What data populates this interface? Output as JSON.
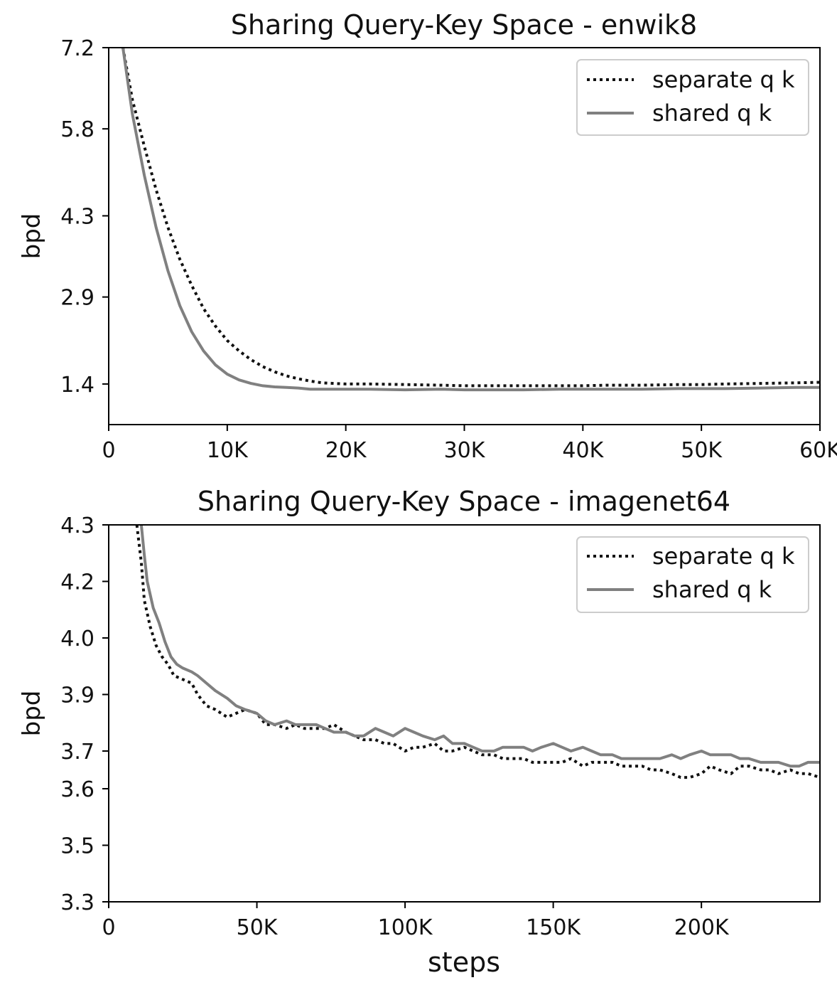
{
  "chart_data": [
    {
      "type": "line",
      "title": "Sharing Query-Key Space - enwik8",
      "xlabel": "",
      "ylabel": "bpd",
      "xlim": [
        0,
        60000
      ],
      "ylim": [
        0.7,
        7.2
      ],
      "x_ticks": [
        0,
        10000,
        20000,
        30000,
        40000,
        50000,
        60000
      ],
      "x_tick_labels": [
        "0",
        "10K",
        "20K",
        "30K",
        "40K",
        "50K",
        "60K"
      ],
      "y_ticks": [
        1.4,
        2.9,
        4.3,
        5.8,
        7.2
      ],
      "y_tick_labels": [
        "1.4",
        "2.9",
        "4.3",
        "5.8",
        "7.2"
      ],
      "grid": false,
      "legend_position": "top-right",
      "series": [
        {
          "name": "separate q k",
          "style": "dotted",
          "color": "#111111",
          "x": [
            1200,
            2000,
            3000,
            4000,
            5000,
            6000,
            7000,
            8000,
            9000,
            10000,
            11000,
            12000,
            13000,
            14000,
            15000,
            16000,
            17000,
            18000,
            19000,
            20000,
            22000,
            25000,
            28000,
            30000,
            32000,
            35000,
            38000,
            40000,
            42000,
            45000,
            48000,
            50000,
            52000,
            55000,
            58000,
            60000
          ],
          "values": [
            7.2,
            6.3,
            5.5,
            4.75,
            4.1,
            3.55,
            3.1,
            2.7,
            2.4,
            2.15,
            1.97,
            1.82,
            1.7,
            1.61,
            1.54,
            1.49,
            1.45,
            1.42,
            1.41,
            1.4,
            1.4,
            1.39,
            1.38,
            1.37,
            1.37,
            1.37,
            1.37,
            1.37,
            1.38,
            1.38,
            1.39,
            1.39,
            1.4,
            1.41,
            1.42,
            1.43
          ]
        },
        {
          "name": "shared q k",
          "style": "solid",
          "color": "#808080",
          "x": [
            1200,
            2000,
            3000,
            4000,
            5000,
            6000,
            7000,
            8000,
            9000,
            10000,
            11000,
            12000,
            13000,
            14000,
            15000,
            16000,
            17000,
            18000,
            19000,
            20000,
            22000,
            25000,
            28000,
            30000,
            32000,
            35000,
            38000,
            40000,
            42000,
            45000,
            48000,
            50000,
            52000,
            55000,
            58000,
            60000
          ],
          "values": [
            7.2,
            6.05,
            5.0,
            4.1,
            3.35,
            2.75,
            2.3,
            1.97,
            1.73,
            1.57,
            1.47,
            1.41,
            1.37,
            1.35,
            1.34,
            1.33,
            1.31,
            1.31,
            1.31,
            1.31,
            1.31,
            1.3,
            1.31,
            1.3,
            1.3,
            1.3,
            1.31,
            1.31,
            1.31,
            1.31,
            1.32,
            1.32,
            1.32,
            1.33,
            1.34,
            1.34
          ]
        }
      ]
    },
    {
      "type": "line",
      "title": "Sharing Query-Key Space - imagenet64",
      "xlabel": "steps",
      "ylabel": "bpd",
      "xlim": [
        0,
        240000
      ],
      "ylim": [
        3.3,
        4.3
      ],
      "x_ticks": [
        0,
        50000,
        100000,
        150000,
        200000
      ],
      "x_tick_labels": [
        "0",
        "50K",
        "100K",
        "150K",
        "200K"
      ],
      "y_ticks": [
        3.3,
        3.45,
        3.6,
        3.7,
        3.85,
        4.0,
        4.15,
        4.3
      ],
      "y_tick_labels": [
        "3.3",
        "3.5",
        "3.6",
        "3.7",
        "3.9",
        "4.0",
        "4.2",
        "4.3"
      ],
      "grid": false,
      "legend_position": "top-right",
      "series": [
        {
          "name": "separate q k",
          "style": "dotted",
          "color": "#111111",
          "x": [
            9500,
            11000,
            12000,
            14000,
            16000,
            18000,
            20000,
            22000,
            25000,
            28000,
            30000,
            33000,
            36000,
            40000,
            43000,
            46000,
            50000,
            53000,
            56000,
            60000,
            63000,
            66000,
            70000,
            73000,
            76000,
            80000,
            83000,
            86000,
            90000,
            93000,
            96000,
            100000,
            103000,
            106000,
            110000,
            113000,
            116000,
            120000,
            123000,
            126000,
            130000,
            133000,
            136000,
            140000,
            143000,
            146000,
            150000,
            153000,
            156000,
            160000,
            163000,
            166000,
            170000,
            173000,
            176000,
            180000,
            183000,
            186000,
            190000,
            193000,
            196000,
            200000,
            203000,
            206000,
            210000,
            213000,
            216000,
            220000,
            223000,
            226000,
            230000,
            233000,
            236000,
            240000
          ],
          "values": [
            4.3,
            4.2,
            4.1,
            4.03,
            3.98,
            3.95,
            3.93,
            3.9,
            3.89,
            3.88,
            3.85,
            3.82,
            3.81,
            3.79,
            3.8,
            3.81,
            3.8,
            3.77,
            3.77,
            3.76,
            3.77,
            3.76,
            3.76,
            3.76,
            3.77,
            3.75,
            3.74,
            3.73,
            3.73,
            3.72,
            3.72,
            3.7,
            3.71,
            3.71,
            3.72,
            3.7,
            3.7,
            3.71,
            3.7,
            3.69,
            3.69,
            3.68,
            3.68,
            3.68,
            3.67,
            3.67,
            3.67,
            3.67,
            3.68,
            3.66,
            3.67,
            3.67,
            3.67,
            3.66,
            3.66,
            3.66,
            3.65,
            3.65,
            3.64,
            3.63,
            3.63,
            3.64,
            3.66,
            3.65,
            3.64,
            3.66,
            3.66,
            3.65,
            3.65,
            3.64,
            3.65,
            3.64,
            3.64,
            3.63
          ]
        },
        {
          "name": "shared q k",
          "style": "solid",
          "color": "#808080",
          "x": [
            11000,
            12000,
            13000,
            15000,
            17000,
            19000,
            21000,
            23000,
            25000,
            28000,
            30000,
            33000,
            36000,
            40000,
            43000,
            46000,
            50000,
            53000,
            56000,
            60000,
            63000,
            66000,
            70000,
            73000,
            76000,
            80000,
            83000,
            86000,
            90000,
            93000,
            96000,
            100000,
            103000,
            106000,
            110000,
            113000,
            116000,
            120000,
            123000,
            126000,
            130000,
            133000,
            136000,
            140000,
            143000,
            146000,
            150000,
            153000,
            156000,
            160000,
            163000,
            166000,
            170000,
            173000,
            176000,
            180000,
            183000,
            186000,
            190000,
            193000,
            196000,
            200000,
            203000,
            206000,
            210000,
            213000,
            216000,
            220000,
            223000,
            226000,
            230000,
            233000,
            236000,
            240000
          ],
          "values": [
            4.3,
            4.22,
            4.15,
            4.08,
            4.04,
            3.99,
            3.95,
            3.93,
            3.92,
            3.91,
            3.9,
            3.88,
            3.86,
            3.84,
            3.82,
            3.81,
            3.8,
            3.78,
            3.77,
            3.78,
            3.77,
            3.77,
            3.77,
            3.76,
            3.75,
            3.75,
            3.74,
            3.74,
            3.76,
            3.75,
            3.74,
            3.76,
            3.75,
            3.74,
            3.73,
            3.74,
            3.72,
            3.72,
            3.71,
            3.7,
            3.7,
            3.71,
            3.71,
            3.71,
            3.7,
            3.71,
            3.72,
            3.71,
            3.7,
            3.71,
            3.7,
            3.69,
            3.69,
            3.68,
            3.68,
            3.68,
            3.68,
            3.68,
            3.69,
            3.68,
            3.69,
            3.7,
            3.69,
            3.69,
            3.69,
            3.68,
            3.68,
            3.67,
            3.67,
            3.67,
            3.66,
            3.66,
            3.67,
            3.67
          ]
        }
      ]
    }
  ]
}
